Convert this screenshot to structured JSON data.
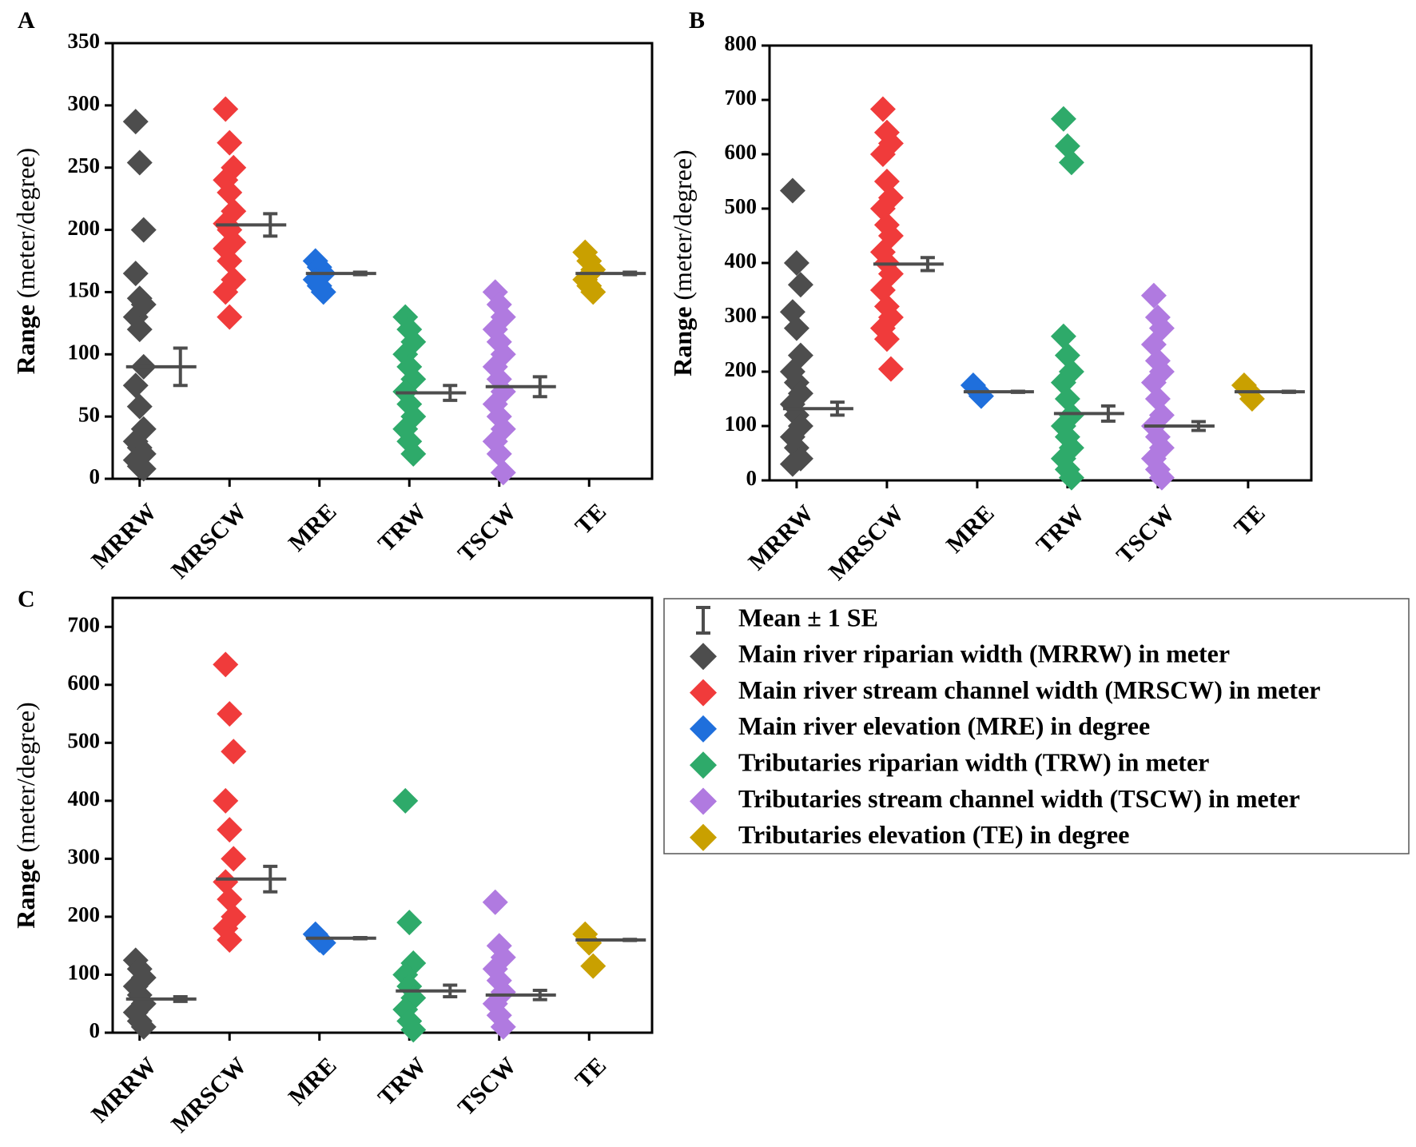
{
  "chart_data": [
    {
      "type": "strip",
      "panel": "A",
      "ylabel_main": "Range",
      "ylabel_unit": "(meter/degree)",
      "categories": [
        "MRRW",
        "MRSCW",
        "MRE",
        "TRW",
        "TSCW",
        "TE"
      ],
      "ylim": [
        0,
        350
      ],
      "yticks": [
        0,
        50,
        100,
        150,
        200,
        250,
        300,
        350
      ],
      "points": [
        [
          287,
          254,
          200,
          165,
          145,
          140,
          130,
          120,
          90,
          75,
          58,
          40,
          30,
          25,
          20,
          15,
          10,
          8
        ],
        [
          297,
          270,
          250,
          240,
          230,
          215,
          205,
          200,
          190,
          185,
          175,
          160,
          150,
          130
        ],
        [
          175,
          170,
          165,
          160,
          155,
          150
        ],
        [
          130,
          120,
          110,
          100,
          90,
          80,
          70,
          60,
          50,
          40,
          30,
          20
        ],
        [
          150,
          140,
          130,
          120,
          110,
          100,
          90,
          80,
          70,
          60,
          50,
          40,
          30,
          20,
          5
        ],
        [
          182,
          175,
          168,
          160,
          155,
          150
        ]
      ],
      "means": [
        90,
        204,
        165,
        69,
        74,
        165
      ],
      "se": [
        15,
        9,
        1,
        6,
        8,
        1
      ]
    },
    {
      "type": "strip",
      "panel": "B",
      "ylabel_main": "Range",
      "ylabel_unit": "(meter/degree)",
      "categories": [
        "MRRW",
        "MRSCW",
        "MRE",
        "TRW",
        "TSCW",
        "TE"
      ],
      "ylim": [
        0,
        800
      ],
      "yticks": [
        0,
        100,
        200,
        300,
        400,
        500,
        600,
        700,
        800
      ],
      "points": [
        [
          533,
          400,
          360,
          310,
          280,
          230,
          200,
          180,
          160,
          140,
          120,
          100,
          80,
          60,
          40,
          30
        ],
        [
          683,
          640,
          620,
          600,
          550,
          520,
          500,
          470,
          450,
          420,
          400,
          380,
          350,
          320,
          300,
          280,
          260,
          205
        ],
        [
          175,
          165,
          155
        ],
        [
          665,
          615,
          585,
          265,
          230,
          200,
          180,
          150,
          120,
          100,
          80,
          60,
          40,
          20,
          5
        ],
        [
          340,
          300,
          280,
          250,
          220,
          200,
          180,
          150,
          120,
          100,
          80,
          60,
          40,
          20,
          5
        ],
        [
          175,
          165,
          150
        ]
      ],
      "means": [
        132,
        398,
        163,
        123,
        100,
        163
      ],
      "se": [
        12,
        12,
        1,
        14,
        8,
        1
      ]
    },
    {
      "type": "strip",
      "panel": "C",
      "ylabel_main": "Range",
      "ylabel_unit": "(meter/degree)",
      "categories": [
        "MRRW",
        "MRSCW",
        "MRE",
        "TRW",
        "TSCW",
        "TE"
      ],
      "ylim": [
        0,
        750
      ],
      "yticks": [
        0,
        100,
        200,
        300,
        400,
        500,
        600,
        700
      ],
      "points": [
        [
          125,
          110,
          95,
          80,
          65,
          50,
          35,
          20,
          10
        ],
        [
          635,
          550,
          485,
          400,
          350,
          300,
          260,
          230,
          200,
          180,
          160
        ],
        [
          170,
          160,
          155
        ],
        [
          400,
          190,
          120,
          100,
          80,
          60,
          40,
          20,
          5
        ],
        [
          225,
          150,
          130,
          110,
          90,
          70,
          50,
          30,
          10
        ],
        [
          170,
          155,
          115
        ]
      ],
      "means": [
        58,
        265,
        163,
        72,
        65,
        160
      ],
      "se": [
        4,
        22,
        1,
        10,
        8,
        1
      ]
    }
  ],
  "legend": {
    "mean_label": "Mean ± 1 SE",
    "entries": [
      {
        "name": "Main river riparian width (MRRW) in meter",
        "color": "#4d4d4d"
      },
      {
        "name": "Main river stream channel width (MRSCW) in meter",
        "color": "#f03b3b"
      },
      {
        "name": "Main river elevation (MRE) in degree",
        "color": "#1f6fdc"
      },
      {
        "name": "Tributaries riparian width (TRW) in meter",
        "color": "#2eaa6a"
      },
      {
        "name": "Tributaries stream channel width (TSCW) in meter",
        "color": "#b07ae0"
      },
      {
        "name": "Tributaries elevation (TE) in degree",
        "color": "#c9a000"
      }
    ]
  }
}
